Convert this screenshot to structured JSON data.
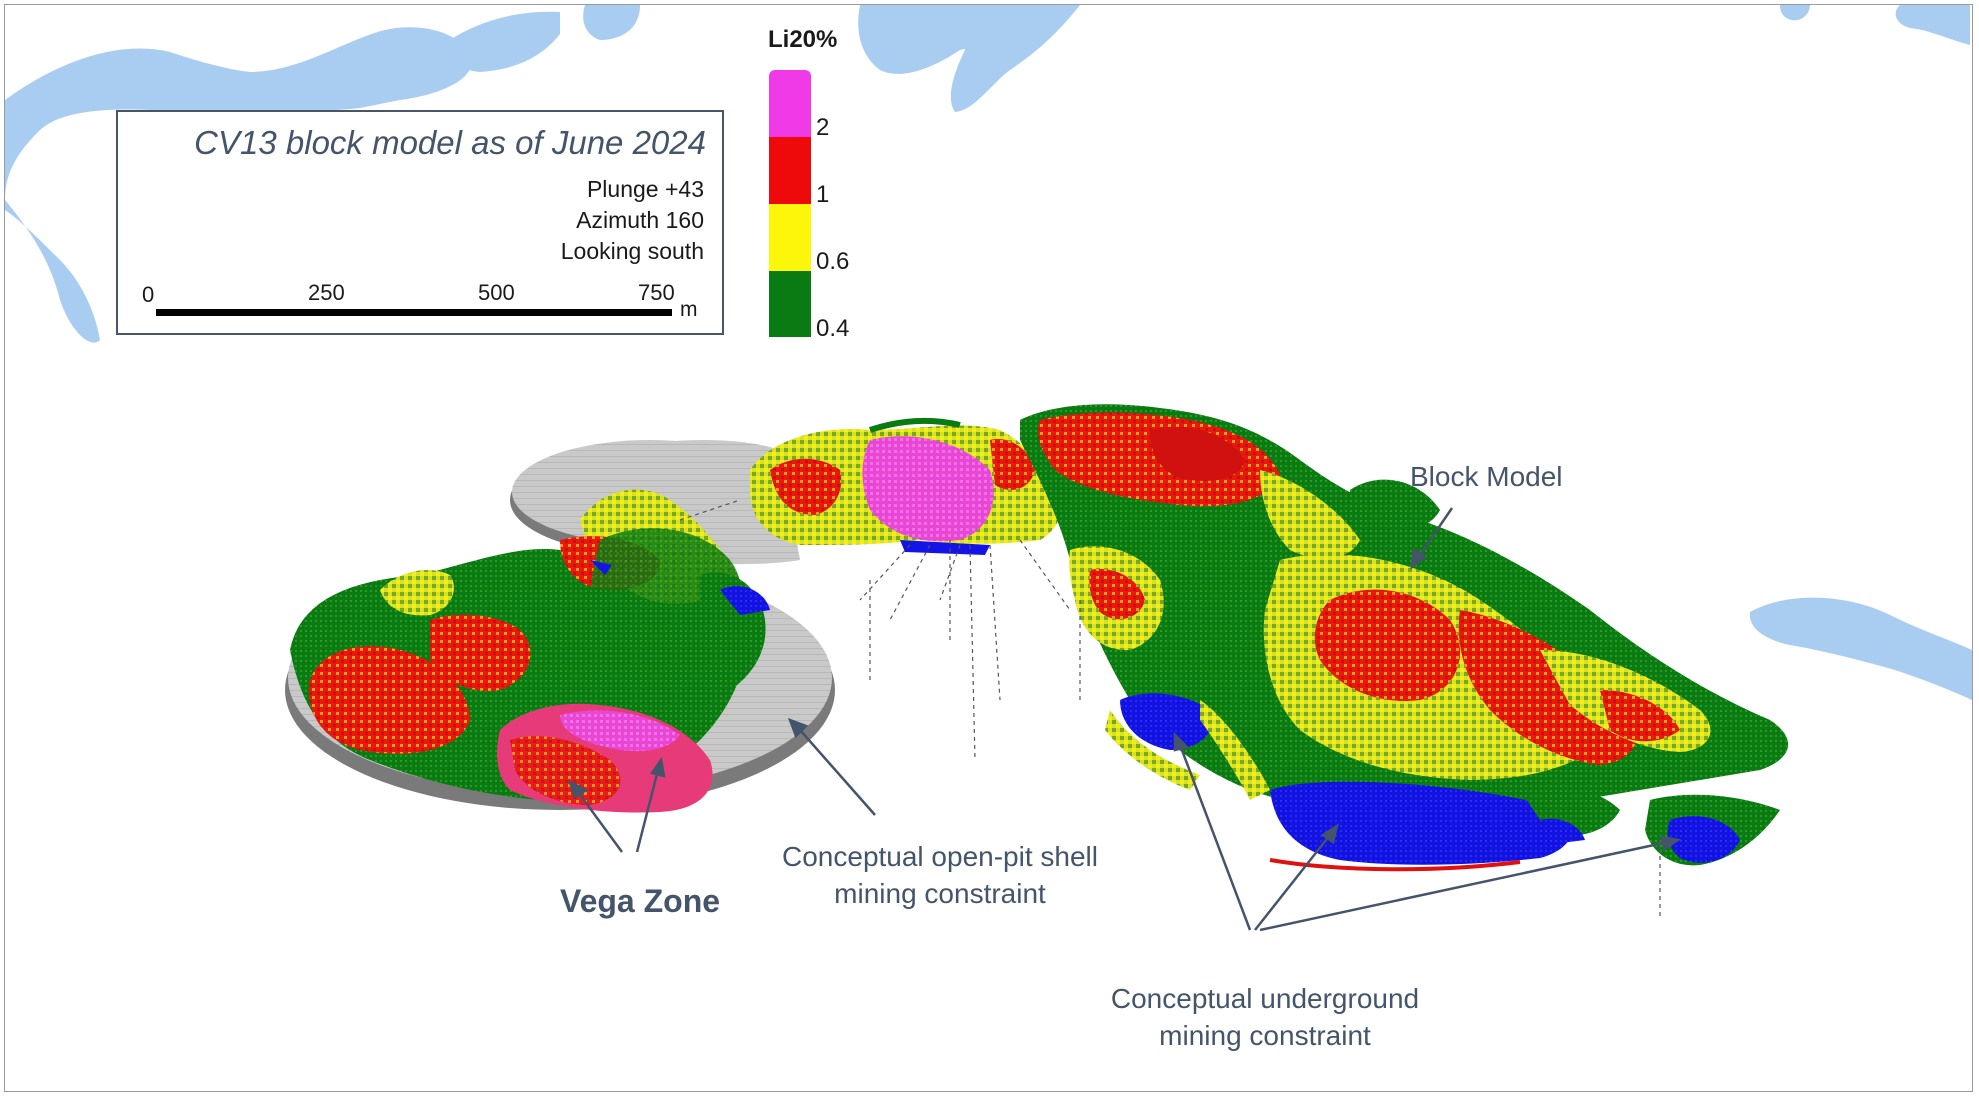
{
  "title_box": {
    "title": "CV13 block model as of June 2024",
    "lines": [
      "Plunge +43",
      "Azimuth 160",
      "Looking south"
    ],
    "scale_labels": [
      "0",
      "250",
      "500",
      "750"
    ],
    "scale_unit": "m"
  },
  "legend": {
    "title": "Li20%",
    "bins": [
      {
        "color": "#f03ae8",
        "label": "2"
      },
      {
        "color": "#ee0a0a",
        "label": "1"
      },
      {
        "color": "#fcf70a",
        "label": "0.6"
      },
      {
        "color": "#0a7a12",
        "label": "0.4"
      }
    ]
  },
  "annotations": {
    "block_model": "Block Model",
    "open_pit_line1": "Conceptual open-pit shell",
    "open_pit_line2": "mining constraint",
    "vega_zone": "Vega Zone",
    "underground_line1": "Conceptual underground",
    "underground_line2": "mining constraint"
  },
  "colors": {
    "water": "#a9cdf1",
    "pit_shell": "#c4c4c4",
    "underground": "#1414e6",
    "high_grade": "#f03ae8",
    "red": "#ee0a0a",
    "yellow": "#fcf70a",
    "green": "#0a7a12",
    "annotation_text": "#44546a"
  }
}
